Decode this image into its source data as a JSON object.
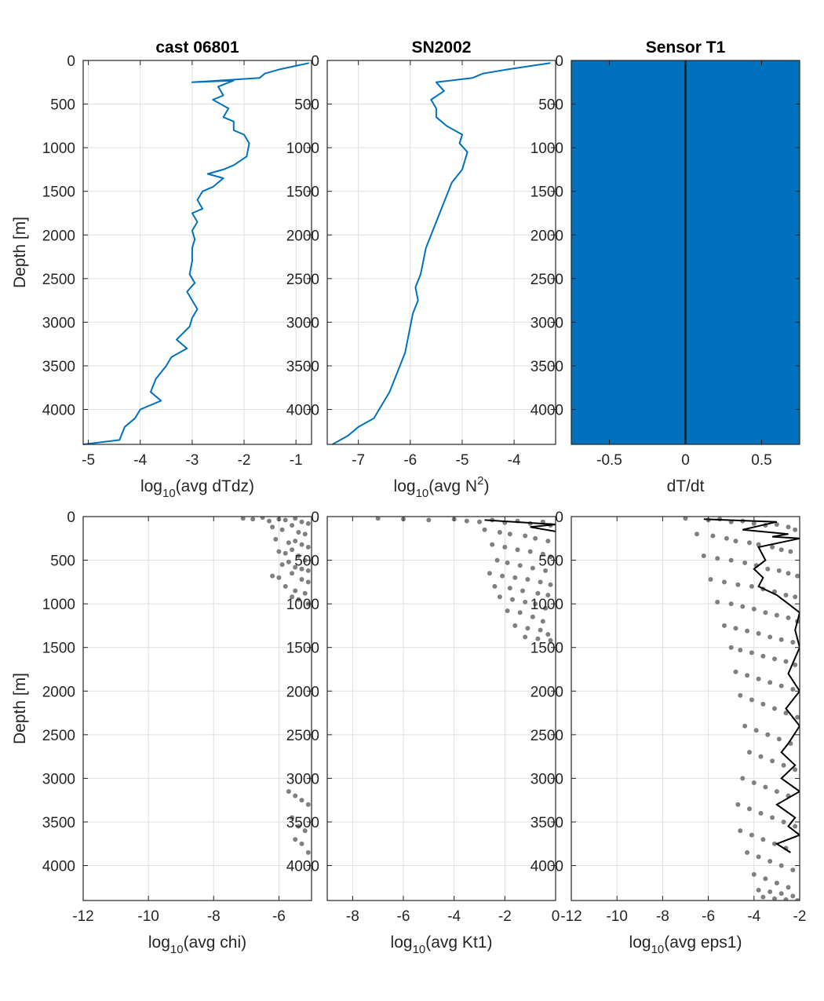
{
  "colors": {
    "line_blue": "#0072BD",
    "scatter_gray": "#808080",
    "black": "#000000",
    "grid": "#DFDFDF",
    "fill_blue": "#0072BD"
  },
  "chart_data": [
    {
      "type": "line",
      "title": "cast 06801",
      "xlabel_main": "log",
      "xlabel_sub": "10",
      "xlabel_rest": "(avg dTdz)",
      "ylabel": "Depth [m]",
      "xlim": [
        -5.1,
        -0.7
      ],
      "ylim": [
        0,
        4400
      ],
      "y_reversed": true,
      "grid": true,
      "xticks": [
        -5,
        -4,
        -3,
        -2,
        -1
      ],
      "yticks": [
        0,
        500,
        1000,
        1500,
        2000,
        2500,
        3000,
        3500,
        4000
      ],
      "series": [
        {
          "x": [
            -0.75,
            -1.3,
            -1.6,
            -1.7,
            -3.0,
            -2.2,
            -2.5,
            -2.4,
            -2.6,
            -2.3,
            -2.4,
            -2.2,
            -2.2,
            -2.0,
            -1.9,
            -1.95,
            -2.2,
            -2.4,
            -2.7,
            -2.4,
            -2.6,
            -2.8,
            -2.9,
            -2.8,
            -3.0,
            -2.9,
            -3.0,
            -2.95,
            -3.0,
            -3.0,
            -3.05,
            -2.95,
            -3.1,
            -3.0,
            -2.9,
            -3.0,
            -3.05,
            -3.3,
            -3.1,
            -3.4,
            -3.5,
            -3.7,
            -3.8,
            -3.6,
            -4.0,
            -4.1,
            -4.3,
            -4.4,
            -5.1
          ],
          "y": [
            30,
            100,
            150,
            200,
            250,
            230,
            300,
            400,
            450,
            550,
            650,
            700,
            800,
            850,
            950,
            1100,
            1200,
            1250,
            1300,
            1350,
            1450,
            1500,
            1600,
            1700,
            1750,
            1850,
            1950,
            2050,
            2150,
            2300,
            2450,
            2550,
            2650,
            2750,
            2850,
            2950,
            3050,
            3200,
            3300,
            3400,
            3500,
            3650,
            3800,
            3900,
            4000,
            4100,
            4200,
            4350,
            4400
          ]
        }
      ]
    },
    {
      "type": "line",
      "title": "SN2002",
      "xlabel_main": "log",
      "xlabel_sub": "10",
      "xlabel_rest": "(avg N",
      "xlabel_sup": "2",
      "xlabel_end": ")",
      "xlim": [
        -7.6,
        -3.2
      ],
      "ylim": [
        0,
        4400
      ],
      "y_reversed": true,
      "grid": true,
      "xticks": [
        -7,
        -6,
        -5,
        -4
      ],
      "yticks": [
        0,
        500,
        1000,
        1500,
        2000,
        2500,
        3000,
        3500,
        4000
      ],
      "series": [
        {
          "x": [
            -3.3,
            -4.1,
            -4.6,
            -4.8,
            -5.5,
            -5.35,
            -5.6,
            -5.5,
            -5.5,
            -5.3,
            -5.0,
            -5.05,
            -4.9,
            -4.95,
            -5.0,
            -5.2,
            -5.3,
            -5.4,
            -5.5,
            -5.6,
            -5.7,
            -5.75,
            -5.8,
            -5.9,
            -5.85,
            -5.95,
            -6.0,
            -6.05,
            -6.1,
            -6.2,
            -6.3,
            -6.4,
            -6.5,
            -6.6,
            -6.7,
            -7.0,
            -7.2,
            -7.5
          ],
          "y": [
            30,
            100,
            150,
            200,
            250,
            350,
            450,
            550,
            650,
            750,
            850,
            950,
            1050,
            1150,
            1250,
            1400,
            1550,
            1700,
            1850,
            2000,
            2150,
            2300,
            2450,
            2600,
            2750,
            2900,
            3050,
            3200,
            3350,
            3500,
            3650,
            3800,
            3900,
            4000,
            4100,
            4200,
            4300,
            4400
          ]
        }
      ]
    },
    {
      "type": "area",
      "title": "Sensor T1",
      "xlabel": "dT/dt",
      "xlim": [
        -0.75,
        0.75
      ],
      "ylim": [
        0,
        4400
      ],
      "y_reversed": true,
      "grid": false,
      "xticks": [
        -0.5,
        0,
        0.5
      ],
      "yticks": [
        0,
        500,
        1000,
        1500,
        2000,
        2500,
        3000,
        3500,
        4000
      ],
      "series": [
        {
          "x": [
            0,
            0
          ],
          "y": [
            0,
            4400
          ]
        }
      ]
    },
    {
      "type": "scatter",
      "xlabel_main": "log",
      "xlabel_sub": "10",
      "xlabel_rest": "(avg chi)",
      "ylabel": "Depth [m]",
      "xlim": [
        -12,
        -5
      ],
      "ylim": [
        0,
        4400
      ],
      "y_reversed": true,
      "grid": true,
      "xticks": [
        -12,
        -10,
        -8,
        -6
      ],
      "yticks": [
        0,
        500,
        1000,
        1500,
        2000,
        2500,
        3000,
        3500,
        4000
      ],
      "series": [
        {
          "x": [
            -7.1,
            -6.8,
            -6.5,
            -6.3,
            -6.0,
            -5.8,
            -5.5,
            -5.3,
            -5.1,
            -6.2,
            -5.9,
            -5.6,
            -5.4,
            -5.2,
            -6.1,
            -5.7,
            -5.5,
            -5.3,
            -5.1,
            -6.0,
            -5.8,
            -5.6,
            -5.4,
            -5.2,
            -5.9,
            -5.7,
            -5.5,
            -5.3,
            -5.1,
            -6.2,
            -6.0,
            -5.6,
            -5.3,
            -5.1,
            -5.8,
            -5.5,
            -5.2,
            -5.6,
            -5.4,
            -5.1,
            -5.7,
            -5.5,
            -5.3,
            -5.1,
            -5.6,
            -5.4,
            -5.2,
            -5.5,
            -5.3,
            -5.1
          ],
          "y": [
            20,
            30,
            10,
            50,
            30,
            40,
            20,
            60,
            80,
            120,
            150,
            100,
            180,
            200,
            260,
            300,
            280,
            320,
            350,
            400,
            420,
            380,
            450,
            500,
            550,
            520,
            580,
            600,
            620,
            680,
            700,
            650,
            720,
            750,
            800,
            850,
            880,
            920,
            950,
            1000,
            3150,
            3200,
            3250,
            3300,
            3450,
            3550,
            3600,
            3700,
            3750,
            3850
          ]
        }
      ]
    },
    {
      "type": "scatter",
      "xlabel_main": "log",
      "xlabel_sub": "10",
      "xlabel_rest": "(avg Kt1)",
      "xlim": [
        -9,
        0
      ],
      "ylim": [
        0,
        4400
      ],
      "y_reversed": true,
      "grid": true,
      "xticks": [
        -8,
        -6,
        -4,
        -2,
        0
      ],
      "yticks": [
        0,
        500,
        1000,
        1500,
        2000,
        2500,
        3000,
        3500,
        4000
      ],
      "series": [
        {
          "name": "",
          "x": [
            -7.0,
            -6.0,
            -5.0,
            -4.0,
            -3.5,
            -3.0,
            -2.5,
            -2.0,
            -1.5,
            -1.0,
            -0.5,
            -0.2,
            -2.8,
            -2.2,
            -1.8,
            -1.2,
            -0.8,
            -0.3,
            -2.5,
            -2.0,
            -1.5,
            -1.0,
            -0.5,
            -0.2,
            -2.3,
            -1.9,
            -1.4,
            -0.9,
            -0.4,
            -2.6,
            -2.1,
            -1.6,
            -1.1,
            -0.6,
            -0.2,
            -2.4,
            -1.8,
            -1.3,
            -0.7,
            -0.3,
            -2.2,
            -1.7,
            -1.2,
            -0.8,
            -0.4,
            -1.9,
            -1.4,
            -0.9,
            -0.5,
            -1.6,
            -1.1,
            -0.6,
            -0.3,
            -1.2,
            -0.7,
            -0.2
          ],
          "y": [
            20,
            30,
            40,
            30,
            50,
            60,
            40,
            70,
            50,
            80,
            60,
            100,
            150,
            180,
            200,
            220,
            250,
            280,
            320,
            350,
            380,
            400,
            430,
            460,
            500,
            530,
            560,
            590,
            620,
            650,
            680,
            700,
            720,
            750,
            780,
            800,
            820,
            850,
            880,
            900,
            920,
            950,
            980,
            1000,
            1050,
            1080,
            1100,
            1150,
            1200,
            1250,
            1280,
            1300,
            1350,
            1380,
            1400,
            1420
          ]
        },
        {
          "name": "",
          "x": [
            -2.8,
            0,
            -1.0,
            0
          ],
          "y": [
            40,
            90,
            120,
            170
          ]
        }
      ]
    },
    {
      "type": "scatter",
      "xlabel_main": "log",
      "xlabel_sub": "10",
      "xlabel_rest": "(avg eps1)",
      "xlim": [
        -12,
        -2
      ],
      "ylim": [
        0,
        4400
      ],
      "y_reversed": true,
      "grid": true,
      "xticks": [
        -12,
        -10,
        -8,
        -6,
        -4,
        -2
      ],
      "yticks": [
        0,
        500,
        1000,
        1500,
        2000,
        2500,
        3000,
        3500,
        4000
      ],
      "series": [
        {
          "name": "",
          "x": [
            -7.0,
            -6.0,
            -5.5,
            -5.0,
            -4.5,
            -4.0,
            -3.5,
            -3.0,
            -2.5,
            -2.2,
            -6.5,
            -5.8,
            -5.2,
            -4.8,
            -4.2,
            -3.8,
            -3.2,
            -2.8,
            -2.4,
            -6.2,
            -5.6,
            -5.0,
            -4.4,
            -3.9,
            -3.4,
            -2.9,
            -2.5,
            -2.1,
            -5.9,
            -5.3,
            -4.7,
            -4.1,
            -3.6,
            -3.1,
            -2.6,
            -2.2,
            -5.6,
            -5.0,
            -4.5,
            -4.0,
            -3.5,
            -3.0,
            -2.5,
            -2.1,
            -5.3,
            -4.8,
            -4.3,
            -3.8,
            -3.3,
            -2.8,
            -2.3,
            -5.0,
            -4.6,
            -4.1,
            -3.6,
            -3.1,
            -2.6,
            -2.2,
            -4.8,
            -4.3,
            -3.8,
            -3.3,
            -2.8,
            -2.3,
            -4.6,
            -4.1,
            -3.6,
            -3.1,
            -2.6,
            -2.1,
            -4.4,
            -3.9,
            -3.4,
            -2.9,
            -2.4,
            -4.2,
            -3.7,
            -3.2,
            -2.7,
            -2.2,
            -4.5,
            -4.0,
            -3.5,
            -3.0,
            -2.5,
            -4.7,
            -4.2,
            -3.7,
            -3.2,
            -2.7,
            -2.2,
            -4.6,
            -4.1,
            -3.6,
            -3.1,
            -2.6,
            -4.3,
            -3.8,
            -3.3,
            -2.8,
            -2.3,
            -4.0,
            -3.5,
            -3.0,
            -2.5,
            -3.8,
            -3.3,
            -2.8,
            -2.3,
            -3.6,
            -3.1,
            -2.6,
            -2.1
          ],
          "y": [
            20,
            40,
            30,
            60,
            50,
            80,
            100,
            90,
            120,
            150,
            200,
            220,
            250,
            280,
            300,
            320,
            350,
            380,
            400,
            450,
            480,
            500,
            530,
            560,
            600,
            620,
            650,
            680,
            720,
            750,
            780,
            800,
            830,
            860,
            900,
            920,
            980,
            1000,
            1030,
            1060,
            1100,
            1130,
            1160,
            1200,
            1250,
            1280,
            1310,
            1340,
            1380,
            1410,
            1440,
            1500,
            1530,
            1560,
            1600,
            1630,
            1660,
            1700,
            1780,
            1820,
            1860,
            1900,
            1940,
            1980,
            2050,
            2100,
            2150,
            2200,
            2250,
            2300,
            2400,
            2450,
            2500,
            2550,
            2600,
            2700,
            2750,
            2800,
            2850,
            2900,
            3000,
            3050,
            3100,
            3150,
            3200,
            3300,
            3350,
            3400,
            3450,
            3500,
            3550,
            3600,
            3650,
            3700,
            3750,
            3800,
            3850,
            3900,
            3950,
            4000,
            4050,
            4100,
            4150,
            4200,
            4250,
            4280,
            4300,
            4320,
            4350,
            4360,
            4380,
            4390,
            4400
          ]
        },
        {
          "name": "",
          "x": [
            -6.2,
            -3.0,
            -4.5,
            -2.5,
            -3.2,
            -2.0,
            -3.8,
            -3.5,
            -4.0,
            -3.6,
            -3.8,
            -3.0,
            -2.5,
            -2.0,
            -2.2,
            -2.0,
            -2.5,
            -2.0,
            -2.6,
            -2.0,
            -2.5,
            -2.8,
            -2.2,
            -2.8,
            -2.0,
            -3.0,
            -2.2,
            -2.5,
            -2.0,
            -3.0,
            -2.4
          ],
          "y": [
            30,
            60,
            150,
            200,
            230,
            250,
            350,
            500,
            600,
            700,
            800,
            900,
            1000,
            1100,
            1300,
            1500,
            1800,
            2000,
            2200,
            2400,
            2600,
            2700,
            2850,
            3000,
            3150,
            3300,
            3450,
            3550,
            3650,
            3750,
            3850
          ]
        }
      ]
    }
  ]
}
